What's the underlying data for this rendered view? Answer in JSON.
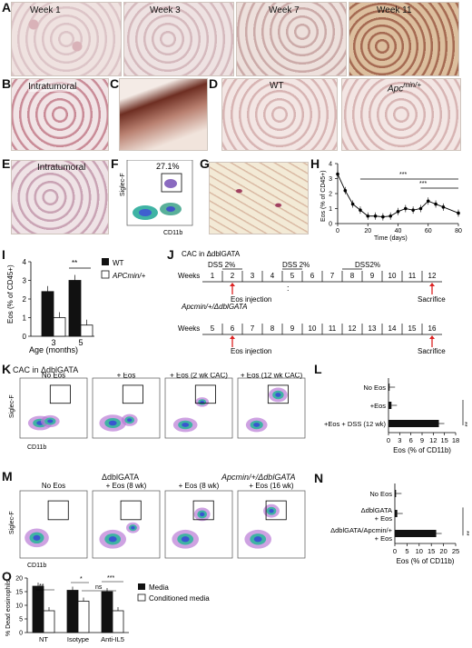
{
  "panels": {
    "A": "A",
    "B": "B",
    "C": "C",
    "D": "D",
    "E": "E",
    "F": "F",
    "G": "G",
    "H": "H",
    "I": "I",
    "J": "J",
    "K": "K",
    "L": "L",
    "M": "M",
    "N": "N",
    "O": "O"
  },
  "a_weeks": [
    "Week 1",
    "Week 3",
    "Week 7",
    "Week 11"
  ],
  "b_label": "Intratumoral",
  "d_labels": {
    "wt": "WT",
    "apc": "Apc",
    "apc_sup": "min/+"
  },
  "e_label": "Intratumoral",
  "f": {
    "pct": "27.1%",
    "x": "CD11b",
    "y": "Siglec-F"
  },
  "h": {
    "ylabel": "Eos (% of CD45+)",
    "xlabel": "Time (days)",
    "sig1": "***",
    "sig2": "***"
  },
  "i": {
    "ylabel": "Eos (% of CD45+)",
    "xlabel": "Age (months)",
    "legend_wt": "WT",
    "legend_apc": "APCmin/+",
    "sig": "**"
  },
  "j": {
    "title1": "CAC in ΔdblGATA",
    "dss": [
      "DSS 2%",
      "DSS 2%",
      "DSS2%"
    ],
    "row_label": "Weeks",
    "weeks1": [
      "1",
      "2",
      "3",
      "4",
      "5",
      "6",
      "7",
      "8",
      "9",
      "10",
      "11",
      "12"
    ],
    "eos1": "Eos injection",
    "sac1": "Sacrifice",
    "title2": "Apcmin/+/ΔdblGATA",
    "weeks2": [
      "5",
      "6",
      "7",
      "8",
      "9",
      "10",
      "11",
      "12",
      "13",
      "14",
      "15",
      "16"
    ],
    "eos2": "Eos injection",
    "sac2": "Sacrifice",
    "dots": ":"
  },
  "k": {
    "title": "CAC in ΔdblGATA",
    "cols": [
      "No Eos",
      "+ Eos",
      "+ Eos (2 wk CAC)",
      "+ Eos (12 wk CAC)"
    ],
    "x": "CD11b",
    "y": "Siglec-F"
  },
  "m": {
    "header1": "ΔdblGATA",
    "header2": "Apcmin/+/ΔdblGATA",
    "cols": [
      "No Eos",
      "+ Eos (8 wk)",
      "+ Eos (8 wk)",
      "+ Eos (16 wk)"
    ],
    "x": "CD11b",
    "y": "Siglec-F"
  },
  "l_sig": "**",
  "n_sig": "**",
  "o": {
    "legend_media": "Media",
    "legend_cond": "Conditioned media",
    "sig_a": "**",
    "sig_b": "*",
    "sig_ns": "ns",
    "sig_c": "***"
  },
  "chart_data": [
    {
      "type": "line",
      "panel": "H",
      "x": [
        0,
        5,
        10,
        15,
        20,
        25,
        30,
        35,
        40,
        45,
        50,
        55,
        60,
        65,
        70,
        80
      ],
      "y": [
        3.3,
        2.2,
        1.3,
        0.9,
        0.5,
        0.5,
        0.45,
        0.5,
        0.8,
        1.0,
        0.9,
        1.0,
        1.5,
        1.3,
        1.1,
        0.7
      ],
      "xlabel": "Time (days)",
      "ylabel": "Eos (% of CD45+)",
      "xlim": [
        0,
        80
      ],
      "ylim": [
        0,
        4
      ],
      "xticks": [
        0,
        20,
        40,
        60,
        80
      ],
      "yticks": [
        0,
        1,
        2,
        3,
        4
      ]
    },
    {
      "type": "bar",
      "panel": "I",
      "categories": [
        "3",
        "5"
      ],
      "series": [
        {
          "name": "WT",
          "values": [
            2.4,
            3.0
          ]
        },
        {
          "name": "APCmin/+",
          "values": [
            1.0,
            0.6
          ]
        }
      ],
      "xlabel": "Age (months)",
      "ylabel": "Eos (% of CD45+)",
      "ylim": [
        0,
        4
      ],
      "yticks": [
        0,
        1,
        2,
        3,
        4
      ]
    },
    {
      "type": "bar",
      "panel": "L",
      "orientation": "horizontal",
      "categories": [
        "No Eos",
        "+Eos",
        "+Eos + DSS (12 wk)"
      ],
      "values": [
        0.3,
        0.8,
        13.5
      ],
      "xlabel": "Eos (% of CD11b)",
      "xlim": [
        0,
        18
      ],
      "xticks": [
        0,
        3,
        6,
        9,
        12,
        15,
        18
      ]
    },
    {
      "type": "bar",
      "panel": "N",
      "orientation": "horizontal",
      "categories": [
        "No Eos",
        "ΔdblGATA + Eos",
        "ΔdblGATA/Apcmin/+ + Eos"
      ],
      "values": [
        0.5,
        1.0,
        17
      ],
      "xlabel": "Eos (% of CD11b)",
      "xlim": [
        0,
        25
      ],
      "xticks": [
        0,
        5,
        10,
        15,
        20,
        25
      ]
    },
    {
      "type": "bar",
      "panel": "O",
      "categories": [
        "NT",
        "Isotype",
        "Anti-IL5"
      ],
      "series": [
        {
          "name": "Media",
          "values": [
            17,
            15.5,
            15
          ]
        },
        {
          "name": "Conditioned media",
          "values": [
            8,
            11.5,
            8
          ]
        }
      ],
      "ylabel": "% Dead eosinophils",
      "ylim": [
        0,
        20
      ],
      "yticks": [
        0,
        5,
        10,
        15,
        20
      ]
    }
  ]
}
